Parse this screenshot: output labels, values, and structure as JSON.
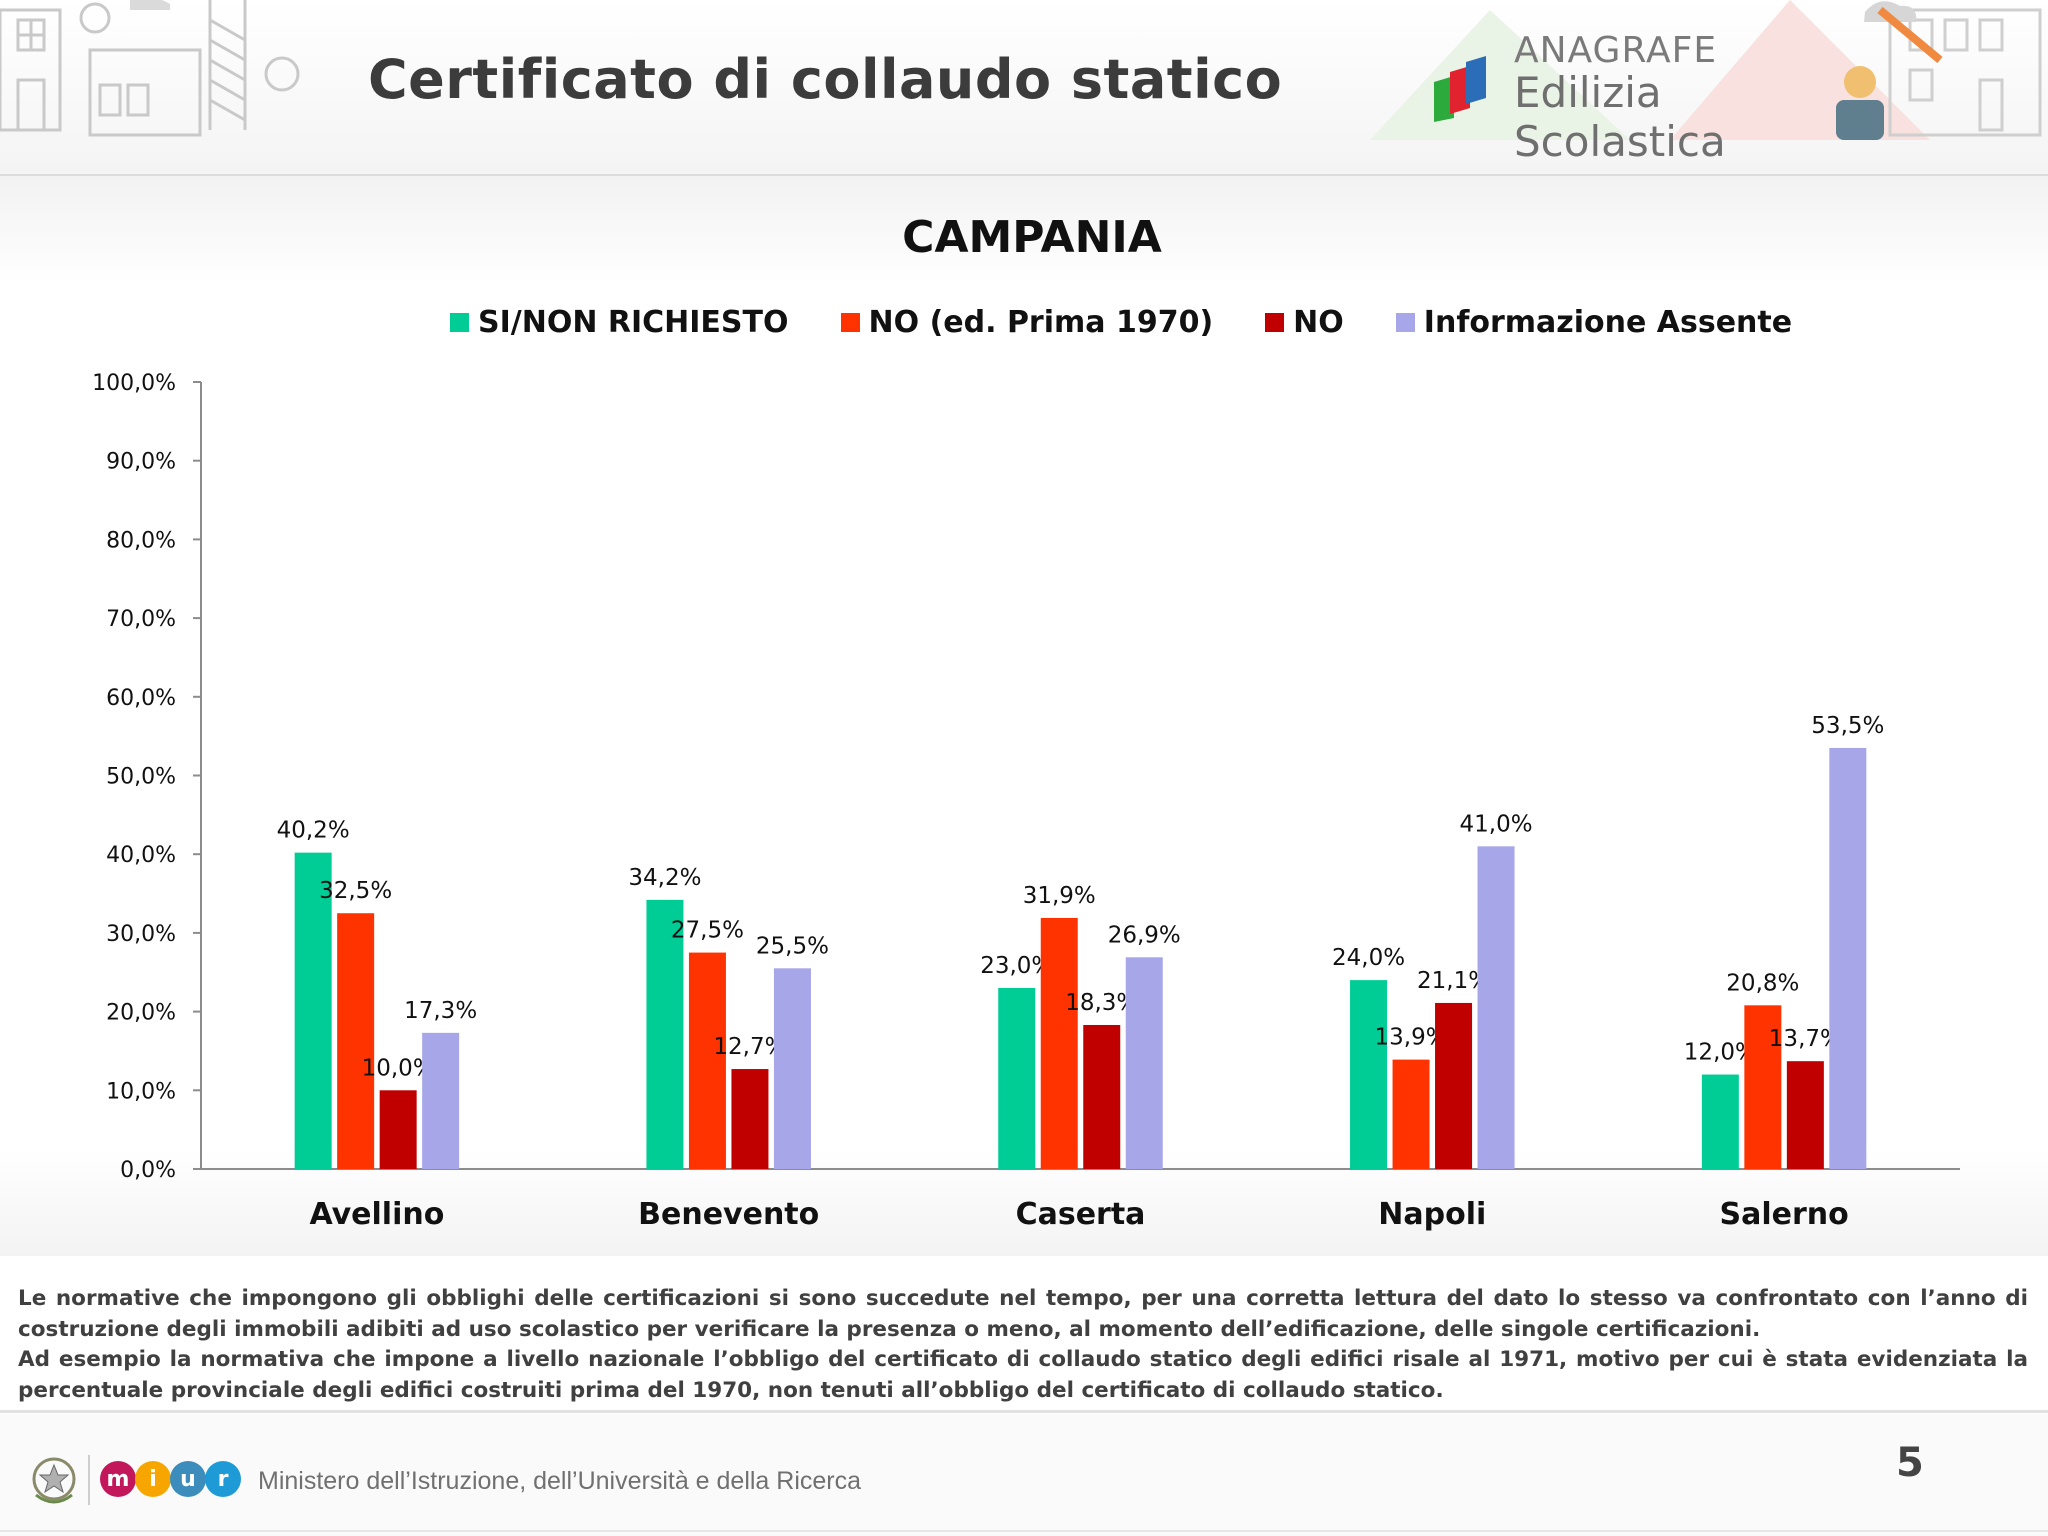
{
  "header": {
    "title": "Certificato di collaudo statico",
    "brand_line1": "ANAGRAFE",
    "brand_line2": "Edilizia Scolastica"
  },
  "chart_data": {
    "type": "bar",
    "title": "CAMPANIA",
    "categories": [
      "Avellino",
      "Benevento",
      "Caserta",
      "Napoli",
      "Salerno"
    ],
    "series": [
      {
        "name": "SI/NON RICHIESTO",
        "color": "#00cc96",
        "values": [
          40.2,
          34.2,
          23.0,
          24.0,
          12.0
        ],
        "labels": [
          "40,2%",
          "34,2%",
          "23,0%",
          "24,0%",
          "12,0%"
        ]
      },
      {
        "name": "NO (ed. Prima 1970)",
        "color": "#ff3300",
        "values": [
          32.5,
          27.5,
          31.9,
          13.9,
          20.8
        ],
        "labels": [
          "32,5%",
          "27,5%",
          "31,9%",
          "13,9%",
          "20,8%"
        ]
      },
      {
        "name": "NO",
        "color": "#c00000",
        "values": [
          10.0,
          12.7,
          18.3,
          21.1,
          13.7
        ],
        "labels": [
          "10,0%",
          "12,7%",
          "18,3%",
          "21,1%",
          "13,7%"
        ]
      },
      {
        "name": "Informazione Assente",
        "color": "#a6a6e8",
        "values": [
          17.3,
          25.5,
          26.9,
          41.0,
          53.5
        ],
        "labels": [
          "17,3%",
          "25,5%",
          "26,9%",
          "41,0%",
          "53,5%"
        ]
      }
    ],
    "ylim": [
      0,
      100
    ],
    "yticks": [
      "0,0%",
      "10,0%",
      "20,0%",
      "30,0%",
      "40,0%",
      "50,0%",
      "60,0%",
      "70,0%",
      "80,0%",
      "90,0%",
      "100,0%"
    ],
    "xlabel": "",
    "ylabel": "",
    "grid": false,
    "legend_position": "top"
  },
  "notes": {
    "para1": "Le normative che impongono gli obblighi delle certificazioni si sono succedute nel tempo, per una corretta lettura del dato lo stesso va confrontato con l’anno di costruzione degli immobili adibiti ad uso scolastico per verificare la presenza o meno, al momento dell’edificazione, delle singole certificazioni.",
    "para2": "Ad esempio la normativa che impone a livello nazionale l’obbligo del certificato di collaudo statico degli edifici risale al 1971, motivo per cui è stata evidenziata la percentuale provinciale degli edifici costruiti prima del 1970, non tenuti all’obbligo del certificato di collaudo statico."
  },
  "footer": {
    "miur_letters": [
      "m",
      "i",
      "u",
      "r"
    ],
    "miur_colors": [
      "#c2185b",
      "#f7a600",
      "#3c8dbc",
      "#1e9bd7"
    ],
    "ministry": "Ministero dell’Istruzione, dell’Università e della Ricerca",
    "page_number": "5"
  }
}
